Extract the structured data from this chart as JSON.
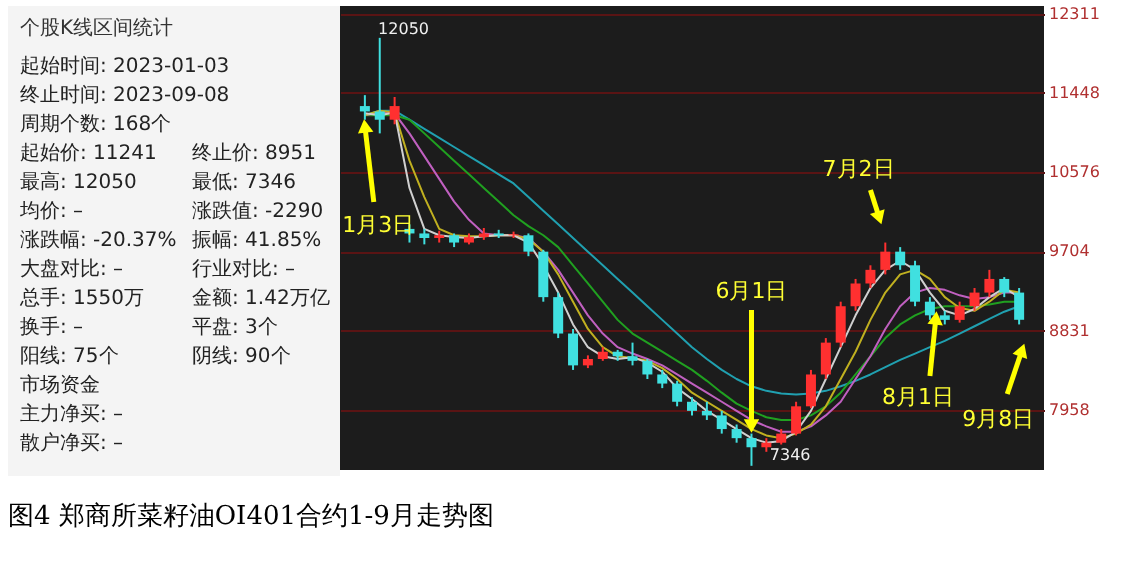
{
  "chart_data": [
    {
      "type": "other",
      "title": "个股K线区间统计",
      "annotations": [
        "起始时间: 2023-01-03",
        "终止时间: 2023-09-08",
        "周期个数: 168个",
        "起始价: 11241",
        "终止价: 8951",
        "最高: 12050",
        "最低: 7346",
        "均价: –",
        "涨跌值: -2290",
        "涨跌幅: -20.37%",
        "振幅: 41.85%",
        "大盘对比: –",
        "行业对比: –",
        "总手: 1550万",
        "金额: 1.42万亿",
        "换手: –",
        "平盘: 3个",
        "阳线: 75个",
        "阴线: 90个",
        "市场资金",
        "主力净买: –",
        "散户净买: –"
      ]
    },
    {
      "type": "candlestick",
      "title": "图4 郑商所菜籽油OI401合约1-9月走势图",
      "categories": [
        null,
        null,
        null,
        null,
        null,
        null,
        null,
        null,
        null,
        null,
        null,
        null,
        null,
        null,
        null,
        null,
        null,
        null,
        null,
        null,
        null,
        null,
        null,
        null,
        null,
        null,
        null,
        null,
        null,
        null,
        null,
        null,
        null,
        null,
        null,
        null,
        null,
        null,
        null,
        null,
        null,
        null,
        null,
        null,
        null
      ],
      "ylim": [
        7300,
        12400
      ],
      "yticks": [
        7958,
        8831,
        9704,
        10576,
        11448,
        12311
      ],
      "grid": "y",
      "tick_labels": "y",
      "ohlc": [
        [
          11300,
          11420,
          11150,
          11241
        ],
        [
          11241,
          12050,
          11000,
          11150
        ],
        [
          11150,
          11400,
          11100,
          11300
        ],
        [
          9950,
          10000,
          9800,
          9900
        ],
        [
          9900,
          9950,
          9780,
          9850
        ],
        [
          9850,
          9930,
          9800,
          9880
        ],
        [
          9880,
          9900,
          9750,
          9800
        ],
        [
          9800,
          9900,
          9780,
          9860
        ],
        [
          9860,
          9960,
          9830,
          9900
        ],
        [
          9900,
          9940,
          9850,
          9880
        ],
        [
          9880,
          9920,
          9850,
          9890
        ],
        [
          9880,
          9900,
          9650,
          9700
        ],
        [
          9700,
          9720,
          9150,
          9200
        ],
        [
          9200,
          9250,
          8750,
          8800
        ],
        [
          8800,
          8850,
          8400,
          8450
        ],
        [
          8450,
          8560,
          8420,
          8520
        ],
        [
          8520,
          8650,
          8500,
          8600
        ],
        [
          8600,
          8620,
          8500,
          8550
        ],
        [
          8550,
          8700,
          8450,
          8500
        ],
        [
          8500,
          8520,
          8300,
          8350
        ],
        [
          8350,
          8400,
          8200,
          8250
        ],
        [
          8250,
          8280,
          8000,
          8050
        ],
        [
          8050,
          8100,
          7900,
          7950
        ],
        [
          7950,
          8050,
          7850,
          7900
        ],
        [
          7900,
          7950,
          7700,
          7750
        ],
        [
          7750,
          7800,
          7600,
          7650
        ],
        [
          7650,
          7700,
          7346,
          7550
        ],
        [
          7550,
          7650,
          7500,
          7600
        ],
        [
          7600,
          7750,
          7580,
          7700
        ],
        [
          7700,
          8050,
          7680,
          8000
        ],
        [
          8000,
          8400,
          7980,
          8350
        ],
        [
          8350,
          8750,
          8300,
          8700
        ],
        [
          8700,
          9150,
          8650,
          9100
        ],
        [
          9100,
          9400,
          9050,
          9350
        ],
        [
          9350,
          9550,
          9300,
          9500
        ],
        [
          9500,
          9800,
          9450,
          9700
        ],
        [
          9700,
          9750,
          9500,
          9550
        ],
        [
          9550,
          9600,
          9100,
          9150
        ],
        [
          9150,
          9200,
          8950,
          9000
        ],
        [
          9000,
          9050,
          8900,
          8950
        ],
        [
          8950,
          9150,
          8920,
          9100
        ],
        [
          9100,
          9300,
          9050,
          9250
        ],
        [
          9250,
          9500,
          9200,
          9400
        ],
        [
          9400,
          9420,
          9200,
          9250
        ],
        [
          9250,
          9300,
          8900,
          8951
        ]
      ],
      "colors": [
        "#40e0e0",
        "#40e0e0",
        "#ff3030",
        "#40e0e0",
        "#40e0e0",
        "#ff3030",
        "#40e0e0",
        "#ff3030",
        "#ff3030",
        "#40e0e0",
        "#ff3030",
        "#40e0e0",
        "#40e0e0",
        "#40e0e0",
        "#40e0e0",
        "#ff3030",
        "#ff3030",
        "#40e0e0",
        "#40e0e0",
        "#40e0e0",
        "#40e0e0",
        "#40e0e0",
        "#40e0e0",
        "#40e0e0",
        "#40e0e0",
        "#40e0e0",
        "#40e0e0",
        "#ff3030",
        "#ff3030",
        "#ff3030",
        "#ff3030",
        "#ff3030",
        "#ff3030",
        "#ff3030",
        "#ff3030",
        "#ff3030",
        "#40e0e0",
        "#40e0e0",
        "#40e0e0",
        "#40e0e0",
        "#ff3030",
        "#ff3030",
        "#ff3030",
        "#40e0e0",
        "#40e0e0"
      ],
      "series": [
        {
          "type": "line",
          "color": "#20a0b0",
          "values": [
            11200,
            11250,
            11250,
            11150,
            11050,
            10950,
            10850,
            10750,
            10650,
            10550,
            10450,
            10300,
            10150,
            10000,
            9850,
            9700,
            9550,
            9400,
            9250,
            9100,
            8950,
            8800,
            8650,
            8520,
            8400,
            8300,
            8220,
            8170,
            8140,
            8130,
            8140,
            8170,
            8220,
            8280,
            8350,
            8430,
            8510,
            8580,
            8650,
            8720,
            8800,
            8880,
            8960,
            9040,
            9100
          ]
        },
        {
          "type": "line",
          "color": "#20a020",
          "values": [
            11200,
            11200,
            11200,
            11150,
            11000,
            10850,
            10700,
            10550,
            10400,
            10250,
            10100,
            9980,
            9880,
            9750,
            9550,
            9350,
            9150,
            8950,
            8800,
            8700,
            8600,
            8500,
            8400,
            8280,
            8150,
            8030,
            7950,
            7880,
            7850,
            7850,
            7900,
            8000,
            8150,
            8350,
            8550,
            8750,
            8900,
            9000,
            9070,
            9100,
            9100,
            9100,
            9120,
            9150,
            9150
          ]
        },
        {
          "type": "line",
          "color": "#c060c0",
          "values": [
            11200,
            11230,
            11220,
            11000,
            10750,
            10500,
            10250,
            10050,
            9900,
            9880,
            9880,
            9850,
            9700,
            9500,
            9250,
            9000,
            8800,
            8650,
            8580,
            8520,
            8450,
            8350,
            8250,
            8150,
            8050,
            7950,
            7850,
            7780,
            7720,
            7720,
            7780,
            7900,
            8050,
            8300,
            8550,
            8850,
            9100,
            9250,
            9300,
            9280,
            9220,
            9180,
            9200,
            9250,
            9250
          ]
        },
        {
          "type": "line",
          "color": "#c0b020",
          "values": [
            11200,
            11250,
            11230,
            10700,
            10300,
            9950,
            9880,
            9870,
            9870,
            9880,
            9880,
            9840,
            9700,
            9450,
            9150,
            8850,
            8650,
            8550,
            8530,
            8500,
            8420,
            8300,
            8150,
            8050,
            7950,
            7850,
            7750,
            7680,
            7650,
            7700,
            7800,
            8000,
            8300,
            8600,
            8950,
            9250,
            9450,
            9500,
            9400,
            9200,
            9080,
            9050,
            9150,
            9280,
            9250
          ]
        },
        {
          "type": "line",
          "color": "#d0d0d0",
          "values": [
            11220,
            11200,
            11230,
            10400,
            9950,
            9880,
            9860,
            9850,
            9870,
            9880,
            9880,
            9800,
            9550,
            9250,
            8900,
            8650,
            8550,
            8520,
            8540,
            8480,
            8380,
            8200,
            8080,
            7950,
            7850,
            7750,
            7650,
            7600,
            7620,
            7720,
            7950,
            8300,
            8650,
            9000,
            9300,
            9500,
            9600,
            9500,
            9250,
            9050,
            9000,
            9070,
            9200,
            9300,
            9200
          ]
        }
      ],
      "annotations": [
        "12050",
        "7346",
        "1月3日",
        "6月1日",
        "7月2日",
        "8月1日",
        "9月8日"
      ]
    }
  ]
}
